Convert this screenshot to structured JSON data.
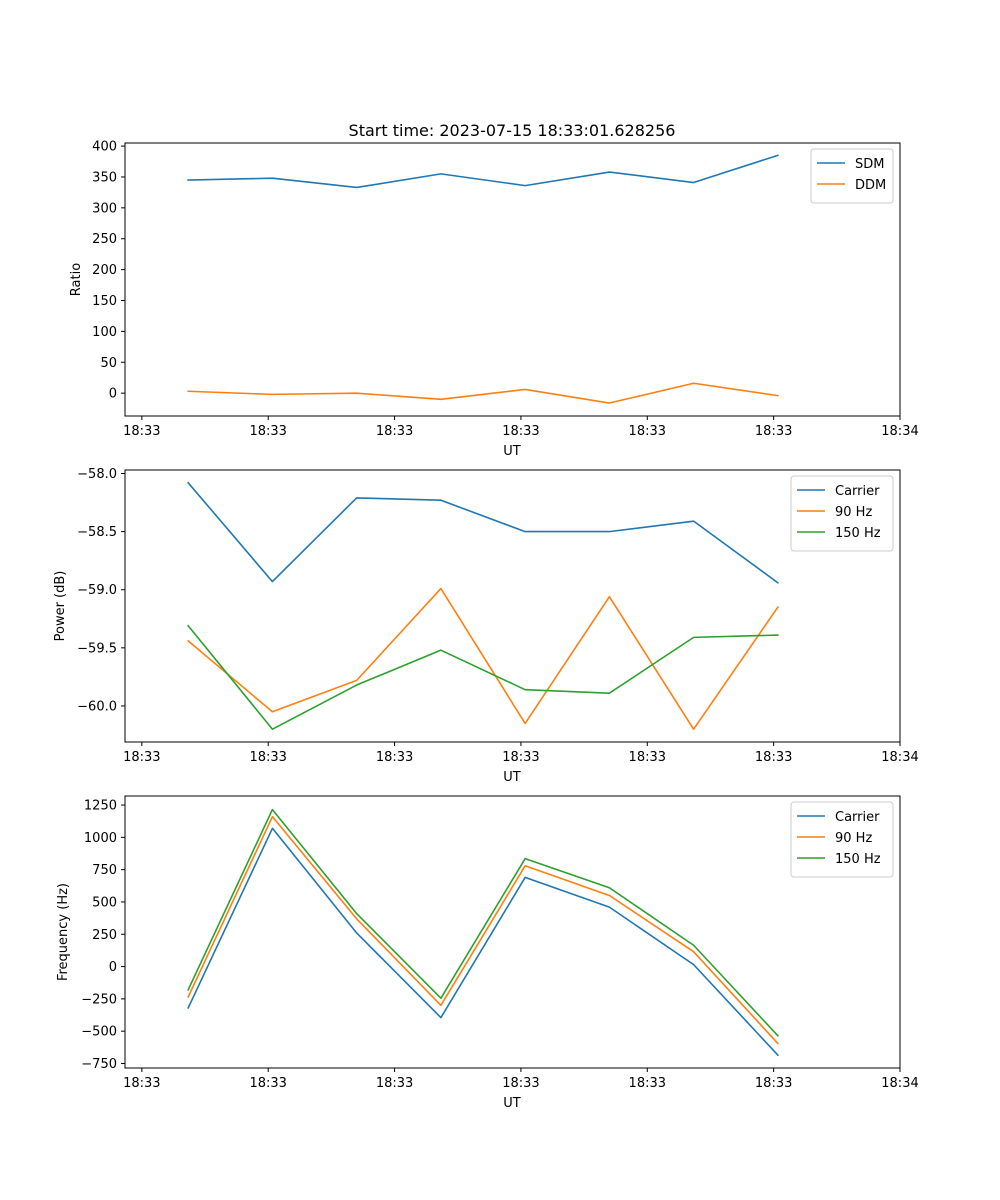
{
  "figure": {
    "title": "Start time: 2023-07-15 18:33:01.628256"
  },
  "colors": {
    "blue": "#1f77b4",
    "orange": "#ff7f0e",
    "green": "#2ca02c"
  },
  "chart_data": [
    {
      "type": "line",
      "title": "Start time: 2023-07-15 18:33:01.628256",
      "xlabel": "UT",
      "ylabel": "Ratio",
      "x": [
        1,
        2,
        3,
        4,
        5,
        6,
        7,
        8
      ],
      "xlim": [
        0.25,
        9.45
      ],
      "x_ticks": [
        0.45,
        1.95,
        3.45,
        4.95,
        6.45,
        7.95,
        9.45
      ],
      "x_tick_labels": [
        "18:33",
        "18:33",
        "18:33",
        "18:33",
        "18:33",
        "18:33",
        "18:34"
      ],
      "ylim": [
        -37,
        405
      ],
      "y_ticks": [
        0,
        50,
        100,
        150,
        200,
        250,
        300,
        350,
        400
      ],
      "y_tick_labels": [
        "0",
        "50",
        "100",
        "150",
        "200",
        "250",
        "300",
        "350",
        "400"
      ],
      "legend": "top-right",
      "series": [
        {
          "name": "SDM",
          "color": "#1f77b4",
          "values": [
            345,
            348,
            333,
            355,
            336,
            358,
            341,
            385
          ]
        },
        {
          "name": "DDM",
          "color": "#ff7f0e",
          "values": [
            3,
            -2,
            0,
            -10,
            6,
            -16,
            16,
            -4
          ]
        }
      ]
    },
    {
      "type": "line",
      "title": "",
      "xlabel": "UT",
      "ylabel": "Power (dB)",
      "x": [
        1,
        2,
        3,
        4,
        5,
        6,
        7,
        8
      ],
      "xlim": [
        0.25,
        9.45
      ],
      "x_ticks": [
        0.45,
        1.95,
        3.45,
        4.95,
        6.45,
        7.95,
        9.45
      ],
      "x_tick_labels": [
        "18:33",
        "18:33",
        "18:33",
        "18:33",
        "18:33",
        "18:33",
        "18:34"
      ],
      "ylim": [
        -60.31,
        -57.97
      ],
      "y_ticks": [
        -58.0,
        -58.5,
        -59.0,
        -59.5,
        -60.0
      ],
      "y_tick_labels": [
        "−58.0",
        "−58.5",
        "−59.0",
        "−59.5",
        "−60.0"
      ],
      "legend": "top-right",
      "series": [
        {
          "name": "Carrier",
          "color": "#1f77b4",
          "values": [
            -58.08,
            -58.93,
            -58.21,
            -58.23,
            -58.5,
            -58.5,
            -58.41,
            -58.94
          ]
        },
        {
          "name": "90 Hz",
          "color": "#ff7f0e",
          "values": [
            -59.44,
            -60.05,
            -59.78,
            -58.99,
            -60.15,
            -59.06,
            -60.2,
            -59.15
          ]
        },
        {
          "name": "150 Hz",
          "color": "#2ca02c",
          "values": [
            -59.31,
            -60.2,
            -59.82,
            -59.52,
            -59.86,
            -59.89,
            -59.41,
            -59.39
          ]
        }
      ]
    },
    {
      "type": "line",
      "title": "",
      "xlabel": "UT",
      "ylabel": "Frequency (Hz)",
      "x": [
        1,
        2,
        3,
        4,
        5,
        6,
        7,
        8
      ],
      "xlim": [
        0.25,
        9.45
      ],
      "x_ticks": [
        0.45,
        1.95,
        3.45,
        4.95,
        6.45,
        7.95,
        9.45
      ],
      "x_tick_labels": [
        "18:33",
        "18:33",
        "18:33",
        "18:33",
        "18:33",
        "18:33",
        "18:34"
      ],
      "ylim": [
        -785,
        1320
      ],
      "y_ticks": [
        -750,
        -500,
        -250,
        0,
        250,
        500,
        750,
        1000,
        1250
      ],
      "y_tick_labels": [
        "−750",
        "−500",
        "−250",
        "0",
        "250",
        "500",
        "750",
        "1000",
        "1250"
      ],
      "legend": "top-right",
      "series": [
        {
          "name": "Carrier",
          "color": "#1f77b4",
          "values": [
            -320,
            1070,
            260,
            -395,
            690,
            460,
            15,
            -685
          ]
        },
        {
          "name": "90 Hz",
          "color": "#ff7f0e",
          "values": [
            -235,
            1160,
            370,
            -300,
            780,
            550,
            115,
            -595
          ]
        },
        {
          "name": "150 Hz",
          "color": "#2ca02c",
          "values": [
            -180,
            1215,
            410,
            -245,
            835,
            610,
            165,
            -535
          ]
        }
      ]
    }
  ]
}
